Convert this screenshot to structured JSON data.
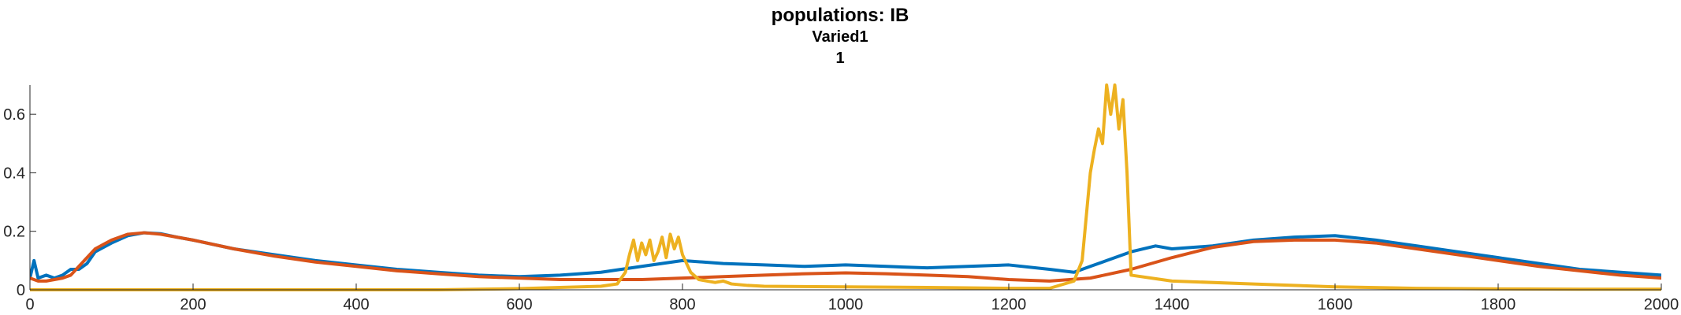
{
  "chart_data": {
    "type": "line",
    "title": "populations: IB",
    "subtitle": "Varied1",
    "subtitle2": "1",
    "xlabel": "",
    "ylabel": "",
    "xlim": [
      0,
      2000
    ],
    "ylim": [
      0,
      0.7
    ],
    "xticks": [
      0,
      200,
      400,
      600,
      800,
      1000,
      1200,
      1400,
      1600,
      1800,
      2000
    ],
    "yticks": [
      0,
      0.2,
      0.4,
      0.6
    ],
    "ytick_labels": [
      "0",
      "0.2",
      "0.4",
      "0.6"
    ],
    "grid": false,
    "series": [
      {
        "color": "#0072BD",
        "x": [
          0,
          5,
          10,
          20,
          30,
          40,
          50,
          60,
          70,
          80,
          100,
          120,
          140,
          160,
          180,
          200,
          250,
          300,
          350,
          400,
          450,
          500,
          550,
          600,
          650,
          700,
          750,
          800,
          850,
          900,
          950,
          1000,
          1050,
          1100,
          1150,
          1200,
          1250,
          1280,
          1300,
          1320,
          1350,
          1380,
          1400,
          1450,
          1500,
          1550,
          1600,
          1650,
          1700,
          1750,
          1800,
          1850,
          1900,
          1950,
          2000
        ],
        "y": [
          0.04,
          0.1,
          0.04,
          0.05,
          0.04,
          0.05,
          0.07,
          0.07,
          0.09,
          0.13,
          0.16,
          0.185,
          0.195,
          0.192,
          0.18,
          0.17,
          0.14,
          0.12,
          0.1,
          0.085,
          0.07,
          0.06,
          0.05,
          0.045,
          0.05,
          0.06,
          0.08,
          0.1,
          0.09,
          0.085,
          0.08,
          0.085,
          0.08,
          0.075,
          0.08,
          0.085,
          0.07,
          0.06,
          0.08,
          0.1,
          0.13,
          0.15,
          0.14,
          0.15,
          0.17,
          0.18,
          0.185,
          0.17,
          0.15,
          0.13,
          0.11,
          0.09,
          0.07,
          0.06,
          0.05
        ]
      },
      {
        "color": "#D95319",
        "x": [
          0,
          10,
          20,
          30,
          40,
          50,
          60,
          70,
          80,
          100,
          120,
          140,
          160,
          180,
          200,
          250,
          300,
          350,
          400,
          450,
          500,
          550,
          600,
          650,
          700,
          750,
          800,
          850,
          900,
          950,
          1000,
          1050,
          1100,
          1150,
          1200,
          1250,
          1300,
          1350,
          1400,
          1450,
          1500,
          1550,
          1600,
          1650,
          1700,
          1750,
          1800,
          1850,
          1900,
          1950,
          2000
        ],
        "y": [
          0.04,
          0.03,
          0.03,
          0.035,
          0.04,
          0.05,
          0.08,
          0.11,
          0.14,
          0.17,
          0.19,
          0.195,
          0.19,
          0.18,
          0.17,
          0.14,
          0.115,
          0.095,
          0.08,
          0.065,
          0.055,
          0.045,
          0.04,
          0.035,
          0.035,
          0.035,
          0.04,
          0.045,
          0.05,
          0.055,
          0.058,
          0.055,
          0.05,
          0.045,
          0.035,
          0.03,
          0.04,
          0.07,
          0.11,
          0.145,
          0.165,
          0.17,
          0.17,
          0.16,
          0.14,
          0.12,
          0.1,
          0.08,
          0.065,
          0.05,
          0.04
        ]
      },
      {
        "color": "#EDB120",
        "x": [
          0,
          100,
          200,
          300,
          400,
          500,
          550,
          600,
          650,
          700,
          720,
          730,
          735,
          740,
          745,
          750,
          755,
          760,
          765,
          770,
          775,
          780,
          785,
          790,
          795,
          800,
          810,
          820,
          840,
          850,
          860,
          880,
          900,
          1000,
          1100,
          1200,
          1250,
          1280,
          1290,
          1295,
          1300,
          1305,
          1310,
          1315,
          1320,
          1325,
          1330,
          1335,
          1340,
          1345,
          1350,
          1400,
          1500,
          1600,
          1700,
          1800,
          1900,
          2000
        ],
        "y": [
          0,
          0,
          0,
          0,
          0,
          0,
          0.002,
          0.004,
          0.008,
          0.012,
          0.02,
          0.06,
          0.12,
          0.17,
          0.1,
          0.16,
          0.12,
          0.17,
          0.1,
          0.13,
          0.18,
          0.11,
          0.19,
          0.14,
          0.18,
          0.12,
          0.06,
          0.035,
          0.025,
          0.03,
          0.02,
          0.015,
          0.012,
          0.01,
          0.008,
          0.005,
          0.005,
          0.03,
          0.1,
          0.25,
          0.4,
          0.48,
          0.55,
          0.5,
          0.7,
          0.6,
          0.7,
          0.55,
          0.65,
          0.4,
          0.05,
          0.03,
          0.02,
          0.01,
          0.005,
          0.003,
          0.002,
          0.002
        ]
      }
    ]
  }
}
